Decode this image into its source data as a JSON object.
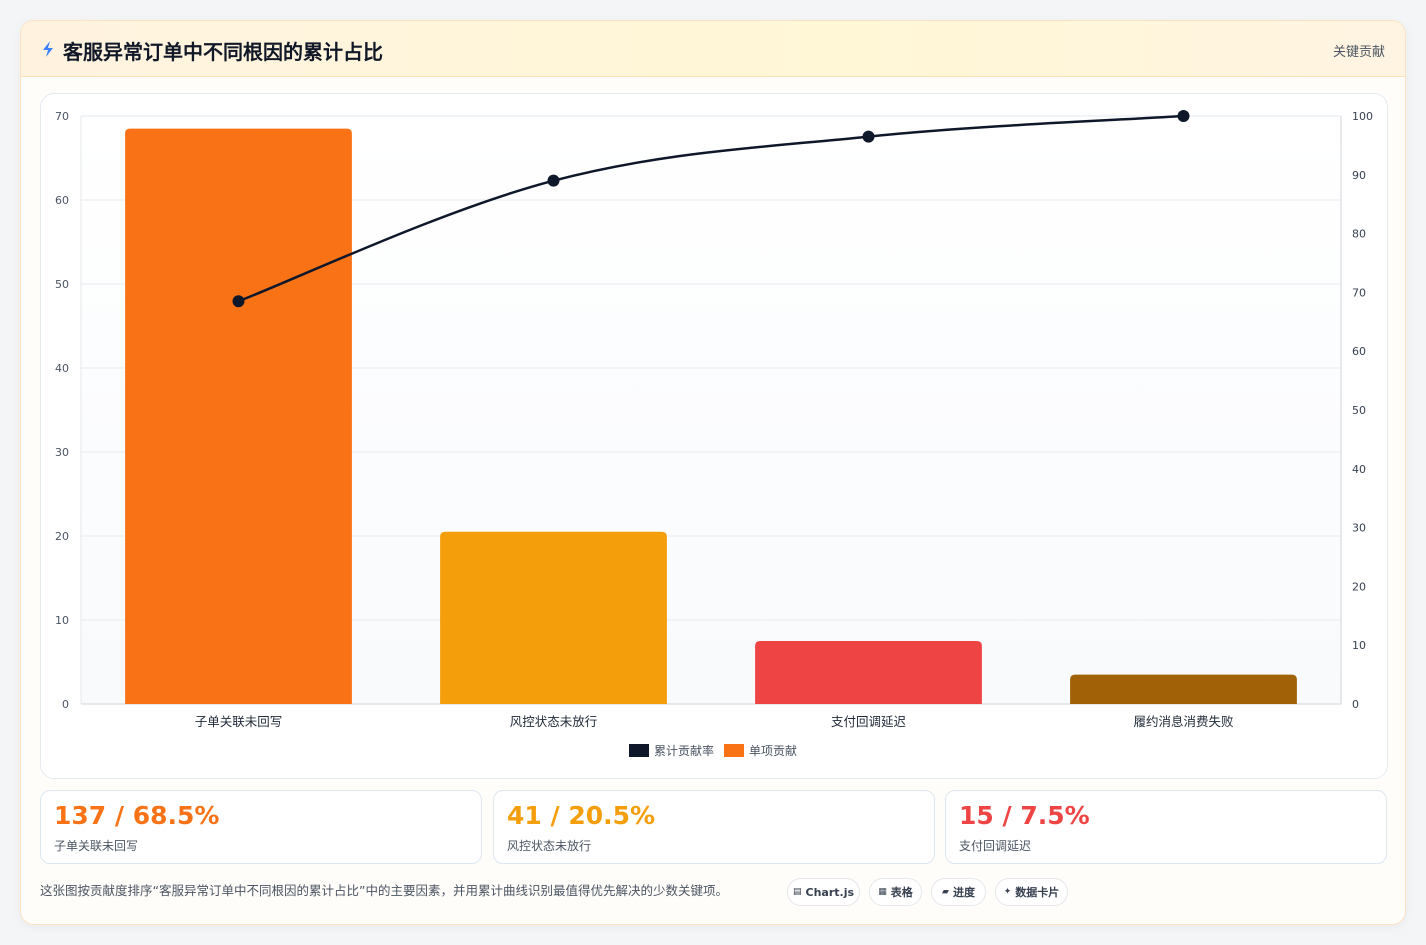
{
  "header": {
    "title": "客服异常订单中不同根因的累计占比",
    "tag": "关键贡献",
    "icon": "bolt-icon"
  },
  "chart_data": {
    "type": "bar",
    "categories": [
      "子单关联未回写",
      "风控状态未放行",
      "支付回调延迟",
      "履约消息消费失败"
    ],
    "series": [
      {
        "name": "单项贡献",
        "type": "bar",
        "values": [
          68.5,
          20.5,
          7.5,
          3.5
        ],
        "colors": [
          "#f97316",
          "#f59e0b",
          "#ef4444",
          "#a16207"
        ]
      },
      {
        "name": "累计贡献率",
        "type": "line",
        "values": [
          68.5,
          89,
          96.5,
          100
        ],
        "color": "#0f172a",
        "axis": "right"
      }
    ],
    "y_left": {
      "ticks": [
        0,
        10,
        20,
        30,
        40,
        50,
        60,
        70
      ],
      "range": [
        0,
        70
      ]
    },
    "y_right": {
      "ticks": [
        0,
        10,
        20,
        30,
        40,
        50,
        60,
        70,
        80,
        90,
        100
      ],
      "range": [
        0,
        100
      ]
    },
    "legend": [
      {
        "label": "累计贡献率",
        "color": "#0f172a"
      },
      {
        "label": "单项贡献",
        "color": "#f97316"
      }
    ],
    "legend_position": "bottom",
    "grid": true
  },
  "stats": [
    {
      "value": "137 / 68.5%",
      "label": "子单关联未回写",
      "color": "#f97316"
    },
    {
      "value": "41 / 20.5%",
      "label": "风控状态未放行",
      "color": "#f59e0b"
    },
    {
      "value": "15 / 7.5%",
      "label": "支付回调延迟",
      "color": "#ef4444"
    }
  ],
  "footer": {
    "text": "这张图按贡献度排序“客服异常订单中不同根因的累计占比”中的主要因素，并用累计曲线识别最值得优先解决的少数关键项。",
    "chips": [
      {
        "icon": "▤",
        "label": "Chart.js"
      },
      {
        "icon": "▦",
        "label": "表格"
      },
      {
        "icon": "▰",
        "label": "进度"
      },
      {
        "icon": "✦",
        "label": "数据卡片"
      }
    ]
  }
}
